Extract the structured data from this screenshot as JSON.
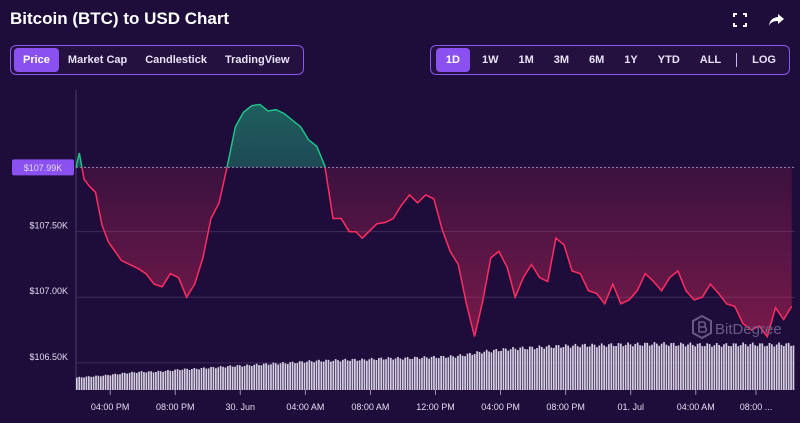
{
  "title": "Bitcoin (BTC) to USD Chart",
  "icons": {
    "fullscreen": "fullscreen-icon",
    "share": "share-icon"
  },
  "tabs": [
    {
      "label": "Price",
      "active": true
    },
    {
      "label": "Market Cap",
      "active": false
    },
    {
      "label": "Candlestick",
      "active": false
    },
    {
      "label": "TradingView",
      "active": false
    }
  ],
  "ranges": [
    {
      "label": "1D",
      "active": true
    },
    {
      "label": "1W",
      "active": false
    },
    {
      "label": "1M",
      "active": false
    },
    {
      "label": "3M",
      "active": false
    },
    {
      "label": "6M",
      "active": false
    },
    {
      "label": "1Y",
      "active": false
    },
    {
      "label": "YTD",
      "active": false
    },
    {
      "label": "ALL",
      "active": false
    }
  ],
  "log_label": "LOG",
  "watermark": "BitDegree",
  "colors": {
    "up": "#1fc38a",
    "down": "#ff2d62",
    "accent": "#8b50f0",
    "background": "#1e0d3a"
  },
  "chart_data": {
    "type": "line",
    "title": "Bitcoin (BTC) to USD Chart",
    "reference_value": 107990,
    "reference_label": "$107.99K",
    "ylim": [
      106270,
      108580
    ],
    "y_ticks": [
      {
        "value": 107500,
        "label": "$107.50K"
      },
      {
        "value": 107000,
        "label": "$107.00K"
      },
      {
        "value": 106500,
        "label": "$106.50K"
      }
    ],
    "x_ticks": [
      "04:00 PM",
      "08:00 PM",
      "30. Jun",
      "04:00 AM",
      "08:00 AM",
      "12:00 PM",
      "04:00 PM",
      "08:00 PM",
      "01. Jul",
      "04:00 AM",
      "08:00 ..."
    ],
    "x_tick_hours": [
      2.1,
      6.1,
      10.1,
      14.1,
      18.1,
      22.1,
      26.1,
      30.1,
      34.1,
      38.1,
      41.8
    ],
    "x_range_hours": [
      0,
      44.2
    ],
    "series": [
      {
        "hours": [
          0,
          0.2,
          0.5,
          0.8,
          1.2,
          1.6,
          2.0,
          2.4,
          2.8,
          3.3,
          3.8,
          4.3,
          4.8,
          5.3,
          5.8,
          6.3,
          6.8,
          7.3,
          7.8,
          8.3,
          8.8,
          9.3,
          9.8,
          10.3,
          10.8,
          11.3,
          11.8,
          12.3,
          12.8,
          13.3,
          13.8,
          14.3,
          14.8,
          15.3,
          15.8,
          16.3,
          16.8,
          17.2,
          17.6,
          18.0,
          18.5,
          19.0,
          19.5,
          20.0,
          20.5,
          21.0,
          21.5,
          22.0,
          22.5,
          23.0,
          23.5,
          24.0,
          24.5,
          25.0,
          25.5,
          26.0,
          26.5,
          27.0,
          27.5,
          28.0,
          28.5,
          29.0,
          29.5,
          30.0,
          30.5,
          31.0,
          31.5,
          32.0,
          32.5,
          33.0,
          33.5,
          34.0,
          34.5,
          35.0,
          35.5,
          36.0,
          36.5,
          37.0,
          37.5,
          38.0,
          38.5,
          39.0,
          39.5,
          40.0,
          40.5,
          41.0,
          41.5,
          42.0,
          42.5,
          43.0,
          43.5,
          44.0
        ],
        "values": [
          107990,
          108100,
          107900,
          107850,
          107800,
          107550,
          107420,
          107350,
          107280,
          107250,
          107220,
          107180,
          107100,
          107080,
          107180,
          107150,
          107000,
          107100,
          107300,
          107600,
          107720,
          108000,
          108300,
          108410,
          108460,
          108470,
          108420,
          108430,
          108400,
          108350,
          108300,
          108200,
          108150,
          108000,
          107600,
          107600,
          107500,
          107500,
          107450,
          107500,
          107560,
          107570,
          107600,
          107700,
          107780,
          107720,
          107780,
          107750,
          107520,
          107350,
          107250,
          106950,
          106700,
          106970,
          107300,
          107350,
          107230,
          107000,
          107150,
          107250,
          107150,
          107120,
          107450,
          107400,
          107200,
          107180,
          107050,
          107030,
          106950,
          107100,
          106950,
          106980,
          107050,
          107180,
          107120,
          107050,
          107150,
          107200,
          107050,
          106980,
          107000,
          107100,
          107030,
          106950,
          106930,
          106800,
          106750,
          106780,
          106700,
          106920,
          106830,
          106930
        ]
      }
    ],
    "volume": [
      0.26,
      0.28,
      0.3,
      0.33,
      0.36,
      0.38,
      0.38,
      0.4,
      0.43,
      0.44,
      0.46,
      0.48,
      0.5,
      0.51,
      0.53,
      0.55,
      0.56,
      0.58,
      0.6,
      0.61,
      0.62,
      0.63,
      0.63,
      0.65,
      0.66,
      0.66,
      0.67,
      0.68,
      0.69,
      0.7,
      0.74,
      0.79,
      0.82,
      0.85,
      0.87,
      0.88,
      0.9,
      0.91,
      0.92,
      0.93,
      0.93,
      0.94,
      0.95,
      0.95,
      0.96,
      0.96,
      0.95,
      0.95,
      0.94,
      0.94,
      0.94,
      0.95,
      0.95,
      0.94,
      0.95,
      0.95
    ],
    "grid": true,
    "legend": "none"
  }
}
